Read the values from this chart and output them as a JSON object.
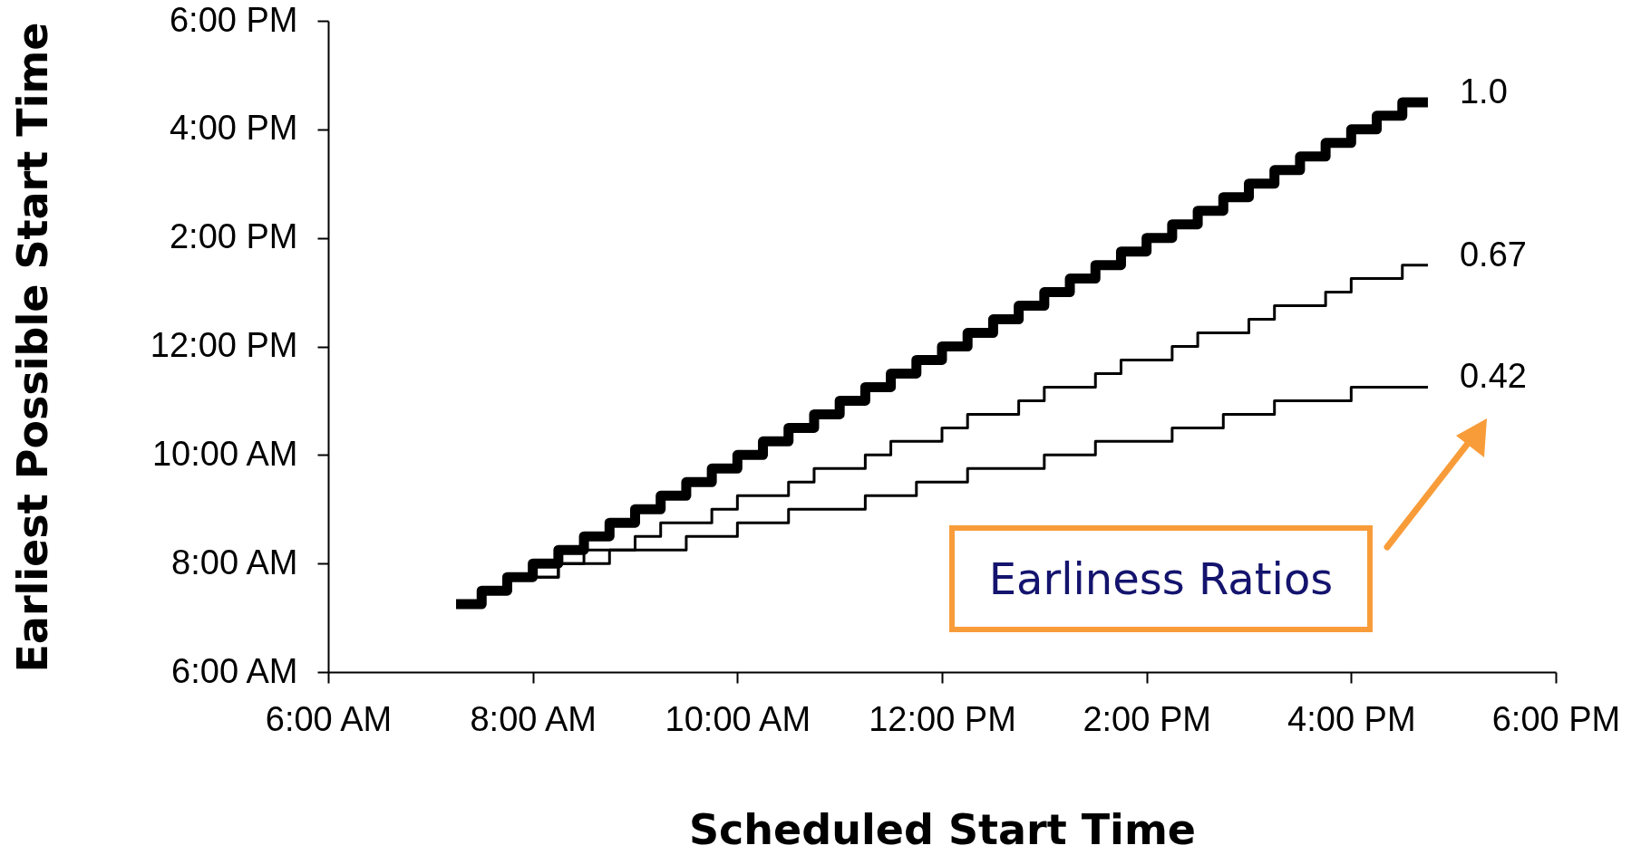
{
  "chart_data": {
    "type": "step",
    "xlabel": "Scheduled Start Time",
    "ylabel": "Earliest Possible Start Time",
    "xlim": [
      6,
      18
    ],
    "ylim": [
      6,
      18
    ],
    "xticks": [
      {
        "value": 6,
        "label": "6:00 AM"
      },
      {
        "value": 8,
        "label": "8:00 AM"
      },
      {
        "value": 10,
        "label": "10:00 AM"
      },
      {
        "value": 12,
        "label": "12:00 PM"
      },
      {
        "value": 14,
        "label": "2:00 PM"
      },
      {
        "value": 16,
        "label": "4:00 PM"
      },
      {
        "value": 18,
        "label": "6:00 PM"
      }
    ],
    "yticks": [
      {
        "value": 6,
        "label": "6:00 AM"
      },
      {
        "value": 8,
        "label": "8:00 AM"
      },
      {
        "value": 10,
        "label": "10:00 AM"
      },
      {
        "value": 12,
        "label": "12:00 PM"
      },
      {
        "value": 14,
        "label": "2:00 PM"
      },
      {
        "value": 16,
        "label": "4:00 PM"
      },
      {
        "value": 18,
        "label": "6:00 PM"
      }
    ],
    "grid": false,
    "annotations": [
      "Earliness Ratios"
    ],
    "series": [
      {
        "name": "1.0",
        "color": "#000000",
        "x": [
          7.25,
          7.5,
          7.75,
          8,
          8.25,
          8.5,
          8.75,
          9,
          9.25,
          9.5,
          9.75,
          10,
          10.25,
          10.5,
          10.75,
          11,
          11.25,
          11.5,
          11.75,
          12,
          12.25,
          12.5,
          12.75,
          13,
          13.25,
          13.5,
          13.75,
          14,
          14.25,
          14.5,
          14.75,
          15,
          15.25,
          15.5,
          15.75,
          16,
          16.25,
          16.5,
          16.75
        ],
        "values": [
          7.25,
          7.5,
          7.75,
          8,
          8.25,
          8.5,
          8.75,
          9,
          9.25,
          9.5,
          9.75,
          10,
          10.25,
          10.5,
          10.75,
          11,
          11.25,
          11.5,
          11.75,
          12,
          12.25,
          12.5,
          12.75,
          13,
          13.25,
          13.5,
          13.75,
          14,
          14.25,
          14.5,
          14.75,
          15,
          15.25,
          15.5,
          15.75,
          16,
          16.25,
          16.5,
          16.5
        ]
      },
      {
        "name": "0.67",
        "color": "#000000",
        "x": [
          7.25,
          7.5,
          7.75,
          8.25,
          8.5,
          9,
          9.25,
          9.75,
          10,
          10.5,
          10.75,
          11.25,
          11.5,
          12,
          12.25,
          12.75,
          13,
          13.5,
          13.75,
          14.25,
          14.5,
          15,
          15.25,
          15.75,
          16,
          16.5,
          16.75
        ],
        "values": [
          7.25,
          7.5,
          7.75,
          8,
          8.25,
          8.5,
          8.75,
          9,
          9.25,
          9.5,
          9.75,
          10,
          10.25,
          10.5,
          10.75,
          11,
          11.25,
          11.5,
          11.75,
          12,
          12.25,
          12.5,
          12.75,
          13,
          13.25,
          13.5,
          13.5
        ]
      },
      {
        "name": "0.42",
        "color": "#000000",
        "x": [
          7.75,
          8.25,
          8.75,
          9.5,
          10,
          10.5,
          11.25,
          11.75,
          12.25,
          13,
          13.5,
          14.25,
          14.75,
          15.25,
          16,
          16.75
        ],
        "values": [
          7.75,
          8,
          8.25,
          8.5,
          8.75,
          9,
          9.25,
          9.5,
          9.75,
          10,
          10.25,
          10.5,
          10.75,
          11,
          11.25,
          11.25
        ]
      }
    ]
  }
}
